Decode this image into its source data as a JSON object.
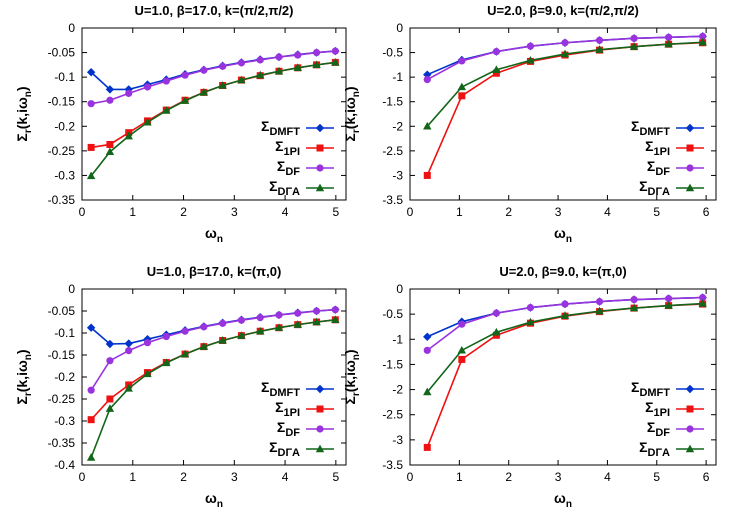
{
  "chart_data": [
    {
      "type": "line",
      "title": "U=1.0, β=17.0, k=(π/2,π/2)",
      "xlabel": {
        "base": "ω",
        "sub": "n"
      },
      "ylabel": "Σr(k,iωn)",
      "xlim": [
        0,
        5.2
      ],
      "ylim": [
        -0.35,
        0
      ],
      "xticks": [
        "0",
        "1",
        "2",
        "3",
        "4",
        "5"
      ],
      "yticks": [
        "0",
        "-0.05",
        "-0.1",
        "-0.15",
        "-0.2",
        "-0.25",
        "-0.3",
        "-0.35"
      ],
      "legend": "bottom-right",
      "series": [
        {
          "name": "DMFT",
          "color": "#0033cc",
          "marker": "diamond",
          "x": [
            0.18,
            0.55,
            0.92,
            1.29,
            1.66,
            2.03,
            2.4,
            2.77,
            3.14,
            3.51,
            3.88,
            4.25,
            4.62,
            4.99
          ],
          "y": [
            -0.09,
            -0.125,
            -0.125,
            -0.115,
            -0.105,
            -0.094,
            -0.085,
            -0.077,
            -0.07,
            -0.064,
            -0.059,
            -0.054,
            -0.05,
            -0.047
          ]
        },
        {
          "name": "1PI",
          "color": "#ee1111",
          "marker": "square",
          "x": [
            0.18,
            0.55,
            0.92,
            1.29,
            1.66,
            2.03,
            2.4,
            2.77,
            3.14,
            3.51,
            3.88,
            4.25,
            4.62,
            4.99
          ],
          "y": [
            -0.243,
            -0.237,
            -0.213,
            -0.189,
            -0.167,
            -0.147,
            -0.131,
            -0.117,
            -0.106,
            -0.097,
            -0.088,
            -0.081,
            -0.075,
            -0.07
          ]
        },
        {
          "name": "DF",
          "color": "#9933dd",
          "marker": "circle",
          "x": [
            0.18,
            0.55,
            0.92,
            1.29,
            1.66,
            2.03,
            2.4,
            2.77,
            3.14,
            3.51,
            3.88,
            4.25,
            4.62,
            4.99
          ],
          "y": [
            -0.154,
            -0.147,
            -0.133,
            -0.12,
            -0.108,
            -0.096,
            -0.086,
            -0.078,
            -0.071,
            -0.065,
            -0.059,
            -0.055,
            -0.05,
            -0.047
          ]
        },
        {
          "name": "DΓA",
          "color": "#11661a",
          "marker": "triangle",
          "x": [
            0.18,
            0.55,
            0.92,
            1.29,
            1.66,
            2.03,
            2.4,
            2.77,
            3.14,
            3.51,
            3.88,
            4.25,
            4.62,
            4.99
          ],
          "y": [
            -0.301,
            -0.252,
            -0.22,
            -0.192,
            -0.168,
            -0.148,
            -0.131,
            -0.117,
            -0.106,
            -0.096,
            -0.088,
            -0.081,
            -0.075,
            -0.07
          ]
        }
      ]
    },
    {
      "type": "line",
      "title": "U=2.0, β=9.0, k=(π/2,π/2)",
      "xlabel": {
        "base": "ω",
        "sub": "n"
      },
      "ylabel": "Σr(k,iωn)",
      "xlim": [
        0,
        6.2
      ],
      "ylim": [
        -3.5,
        0
      ],
      "xticks": [
        "0",
        "1",
        "2",
        "3",
        "4",
        "5",
        "6"
      ],
      "yticks": [
        "0",
        "-0.5",
        "-1",
        "-1.5",
        "-2",
        "-2.5",
        "-3",
        "-3.5"
      ],
      "legend": "bottom-right",
      "series": [
        {
          "name": "DMFT",
          "color": "#0033cc",
          "marker": "diamond",
          "x": [
            0.35,
            1.05,
            1.75,
            2.44,
            3.14,
            3.84,
            4.54,
            5.24,
            5.93
          ],
          "y": [
            -0.95,
            -0.65,
            -0.48,
            -0.37,
            -0.3,
            -0.25,
            -0.21,
            -0.19,
            -0.17
          ]
        },
        {
          "name": "1PI",
          "color": "#ee1111",
          "marker": "square",
          "x": [
            0.35,
            1.05,
            1.75,
            2.44,
            3.14,
            3.84,
            4.54,
            5.24,
            5.93
          ],
          "y": [
            -3.0,
            -1.38,
            -0.92,
            -0.68,
            -0.55,
            -0.45,
            -0.38,
            -0.33,
            -0.3
          ]
        },
        {
          "name": "DF",
          "color": "#9933dd",
          "marker": "circle",
          "x": [
            0.35,
            1.05,
            1.75,
            2.44,
            3.14,
            3.84,
            4.54,
            5.24,
            5.93
          ],
          "y": [
            -1.05,
            -0.67,
            -0.48,
            -0.37,
            -0.3,
            -0.25,
            -0.21,
            -0.19,
            -0.17
          ]
        },
        {
          "name": "DΓA",
          "color": "#11661a",
          "marker": "triangle",
          "x": [
            0.35,
            1.05,
            1.75,
            2.44,
            3.14,
            3.84,
            4.54,
            5.24,
            5.93
          ],
          "y": [
            -2.0,
            -1.2,
            -0.85,
            -0.66,
            -0.53,
            -0.44,
            -0.38,
            -0.33,
            -0.29
          ]
        }
      ]
    },
    {
      "type": "line",
      "title": "U=1.0, β=17.0, k=(π,0)",
      "xlabel": {
        "base": "ω",
        "sub": "n"
      },
      "ylabel": "Σr(k,iωn)",
      "xlim": [
        0,
        5.2
      ],
      "ylim": [
        -0.4,
        0
      ],
      "xticks": [
        "0",
        "1",
        "2",
        "3",
        "4",
        "5"
      ],
      "yticks": [
        "0",
        "-0.05",
        "-0.1",
        "-0.15",
        "-0.2",
        "-0.25",
        "-0.3",
        "-0.35",
        "-0.4"
      ],
      "legend": "bottom-right",
      "series": [
        {
          "name": "DMFT",
          "color": "#0033cc",
          "marker": "diamond",
          "x": [
            0.18,
            0.55,
            0.92,
            1.29,
            1.66,
            2.03,
            2.4,
            2.77,
            3.14,
            3.51,
            3.88,
            4.25,
            4.62,
            4.99
          ],
          "y": [
            -0.088,
            -0.125,
            -0.124,
            -0.114,
            -0.104,
            -0.094,
            -0.085,
            -0.077,
            -0.07,
            -0.064,
            -0.059,
            -0.054,
            -0.05,
            -0.047
          ]
        },
        {
          "name": "1PI",
          "color": "#ee1111",
          "marker": "square",
          "x": [
            0.18,
            0.55,
            0.92,
            1.29,
            1.66,
            2.03,
            2.4,
            2.77,
            3.14,
            3.51,
            3.88,
            4.25,
            4.62,
            4.99
          ],
          "y": [
            -0.297,
            -0.25,
            -0.218,
            -0.19,
            -0.167,
            -0.148,
            -0.131,
            -0.117,
            -0.106,
            -0.096,
            -0.088,
            -0.081,
            -0.075,
            -0.07
          ]
        },
        {
          "name": "DF",
          "color": "#9933dd",
          "marker": "circle",
          "x": [
            0.18,
            0.55,
            0.92,
            1.29,
            1.66,
            2.03,
            2.4,
            2.77,
            3.14,
            3.51,
            3.88,
            4.25,
            4.62,
            4.99
          ],
          "y": [
            -0.23,
            -0.163,
            -0.14,
            -0.122,
            -0.108,
            -0.096,
            -0.086,
            -0.078,
            -0.071,
            -0.065,
            -0.059,
            -0.055,
            -0.05,
            -0.047
          ]
        },
        {
          "name": "DΓA",
          "color": "#11661a",
          "marker": "triangle",
          "x": [
            0.18,
            0.55,
            0.92,
            1.29,
            1.66,
            2.03,
            2.4,
            2.77,
            3.14,
            3.51,
            3.88,
            4.25,
            4.62,
            4.99
          ],
          "y": [
            -0.383,
            -0.272,
            -0.226,
            -0.193,
            -0.168,
            -0.148,
            -0.131,
            -0.117,
            -0.106,
            -0.096,
            -0.088,
            -0.081,
            -0.075,
            -0.07
          ]
        }
      ]
    },
    {
      "type": "line",
      "title": "U=2.0, β=9.0, k=(π,0)",
      "xlabel": {
        "base": "ω",
        "sub": "n"
      },
      "ylabel": "Σr(k,iωn)",
      "xlim": [
        0,
        6.2
      ],
      "ylim": [
        -3.5,
        0
      ],
      "xticks": [
        "0",
        "1",
        "2",
        "3",
        "4",
        "5",
        "6"
      ],
      "yticks": [
        "0",
        "-0.5",
        "-1",
        "-1.5",
        "-2",
        "-2.5",
        "-3",
        "-3.5"
      ],
      "legend": "bottom-right",
      "series": [
        {
          "name": "DMFT",
          "color": "#0033cc",
          "marker": "diamond",
          "x": [
            0.35,
            1.05,
            1.75,
            2.44,
            3.14,
            3.84,
            4.54,
            5.24,
            5.93
          ],
          "y": [
            -0.95,
            -0.65,
            -0.48,
            -0.37,
            -0.3,
            -0.25,
            -0.21,
            -0.19,
            -0.17
          ]
        },
        {
          "name": "1PI",
          "color": "#ee1111",
          "marker": "square",
          "x": [
            0.35,
            1.05,
            1.75,
            2.44,
            3.14,
            3.84,
            4.54,
            5.24,
            5.93
          ],
          "y": [
            -3.15,
            -1.4,
            -0.92,
            -0.68,
            -0.54,
            -0.45,
            -0.38,
            -0.33,
            -0.3
          ]
        },
        {
          "name": "DF",
          "color": "#9933dd",
          "marker": "circle",
          "x": [
            0.35,
            1.05,
            1.75,
            2.44,
            3.14,
            3.84,
            4.54,
            5.24,
            5.93
          ],
          "y": [
            -1.22,
            -0.7,
            -0.48,
            -0.37,
            -0.3,
            -0.25,
            -0.21,
            -0.19,
            -0.17
          ]
        },
        {
          "name": "DΓA",
          "color": "#11661a",
          "marker": "triangle",
          "x": [
            0.35,
            1.05,
            1.75,
            2.44,
            3.14,
            3.84,
            4.54,
            5.24,
            5.93
          ],
          "y": [
            -2.05,
            -1.22,
            -0.86,
            -0.66,
            -0.53,
            -0.44,
            -0.38,
            -0.33,
            -0.29
          ]
        }
      ]
    }
  ]
}
